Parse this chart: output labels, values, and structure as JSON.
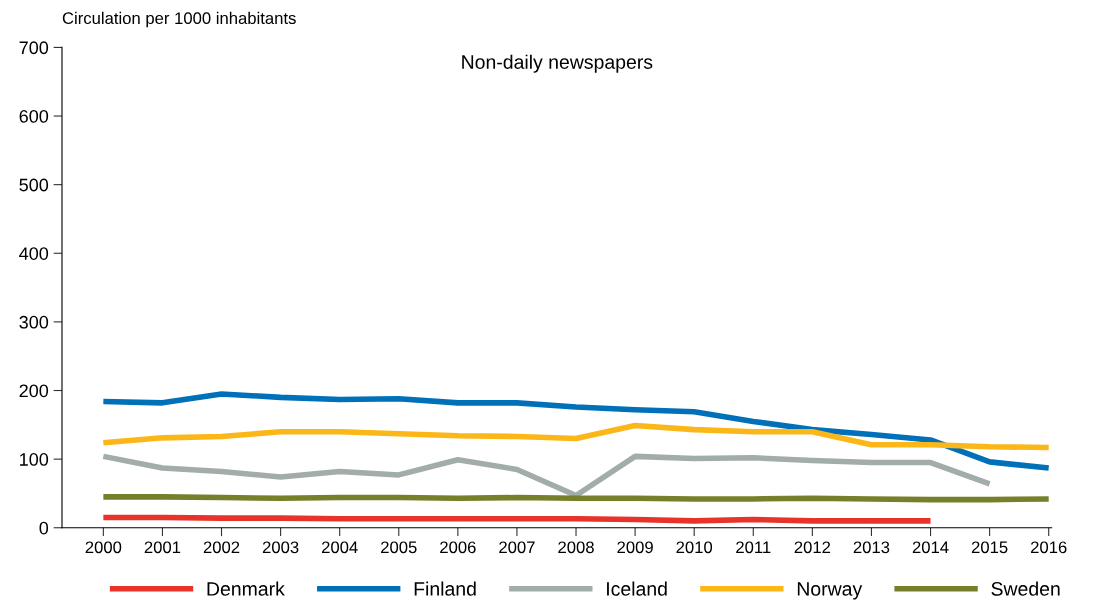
{
  "chart_data": {
    "type": "line",
    "title": "Non-daily newspapers",
    "ylabel": "Circulation per 1000 inhabitants",
    "categories": [
      "2000",
      "2001",
      "2002",
      "2003",
      "2004",
      "2005",
      "2006",
      "2007",
      "2008",
      "2009",
      "2010",
      "2011",
      "2012",
      "2013",
      "2014",
      "2015",
      "2016"
    ],
    "ylim": [
      0,
      700
    ],
    "yticks": [
      0,
      100,
      200,
      300,
      400,
      500,
      600,
      700
    ],
    "grid": false,
    "legend": "bottom",
    "marker": "none",
    "line_style": "solid",
    "series": [
      {
        "name": "Denmark",
        "color": "#e8332a",
        "values": [
          15,
          15,
          14,
          14,
          13,
          13,
          13,
          13,
          13,
          12,
          10,
          12,
          10,
          10,
          10,
          null,
          null
        ]
      },
      {
        "name": "Finland",
        "color": "#0070b8",
        "values": [
          184,
          182,
          195,
          190,
          187,
          188,
          182,
          182,
          176,
          172,
          169,
          155,
          143,
          136,
          128,
          96,
          87
        ]
      },
      {
        "name": "Iceland",
        "color": "#a2aca8",
        "values": [
          104,
          87,
          82,
          74,
          82,
          77,
          99,
          85,
          47,
          104,
          101,
          102,
          98,
          95,
          95,
          64,
          null
        ]
      },
      {
        "name": "Norway",
        "color": "#fbb718",
        "values": [
          124,
          131,
          133,
          140,
          140,
          137,
          134,
          133,
          130,
          149,
          143,
          140,
          140,
          121,
          121,
          118,
          117
        ]
      },
      {
        "name": "Sweden",
        "color": "#76802a",
        "values": [
          45,
          45,
          44,
          43,
          44,
          44,
          43,
          44,
          43,
          43,
          42,
          42,
          43,
          42,
          41,
          41,
          42
        ]
      }
    ]
  }
}
